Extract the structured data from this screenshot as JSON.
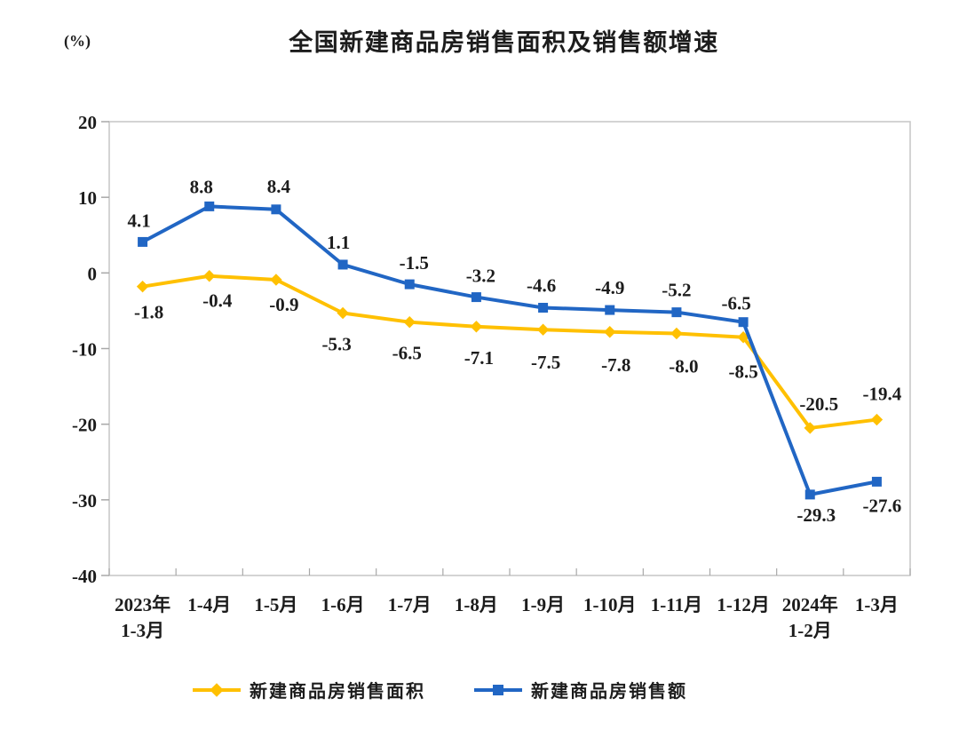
{
  "chart_data": {
    "type": "line",
    "title": "全国新建商品房销售面积及销售额增速",
    "unit_label": "(%)",
    "categories": [
      "2023年\n1-3月",
      "1-4月",
      "1-5月",
      "1-6月",
      "1-7月",
      "1-8月",
      "1-9月",
      "1-10月",
      "1-11月",
      "1-12月",
      "2024年\n1-2月",
      "1-3月"
    ],
    "y_axis": {
      "min": -40,
      "max": 20,
      "ticks": [
        20,
        10,
        0,
        -10,
        -20,
        -30,
        -40
      ]
    },
    "grid": false,
    "legend_position": "bottom",
    "series": [
      {
        "name": "新建商品房销售面积",
        "color": "#FFC000",
        "marker": "diamond",
        "values": [
          -1.8,
          -0.4,
          -0.9,
          -5.3,
          -6.5,
          -7.1,
          -7.5,
          -7.8,
          -8.0,
          -8.5,
          -20.5,
          -19.4
        ],
        "labels": [
          "-1.8",
          "-0.4",
          "-0.9",
          "-5.3",
          "-6.5",
          "-7.1",
          "-7.5",
          "-7.8",
          "-8.0",
          "-8.5",
          "-20.5",
          "-19.4"
        ]
      },
      {
        "name": "新建商品房销售额",
        "color": "#2166C4",
        "marker": "square",
        "values": [
          4.1,
          8.8,
          8.4,
          1.1,
          -1.5,
          -3.2,
          -4.6,
          -4.9,
          -5.2,
          -6.5,
          -29.3,
          -27.6
        ],
        "labels": [
          "4.1",
          "8.8",
          "8.4",
          "1.1",
          "-1.5",
          "-3.2",
          "-4.6",
          "-4.9",
          "-5.2",
          "-6.5",
          "-29.3",
          "-27.6"
        ]
      }
    ]
  }
}
